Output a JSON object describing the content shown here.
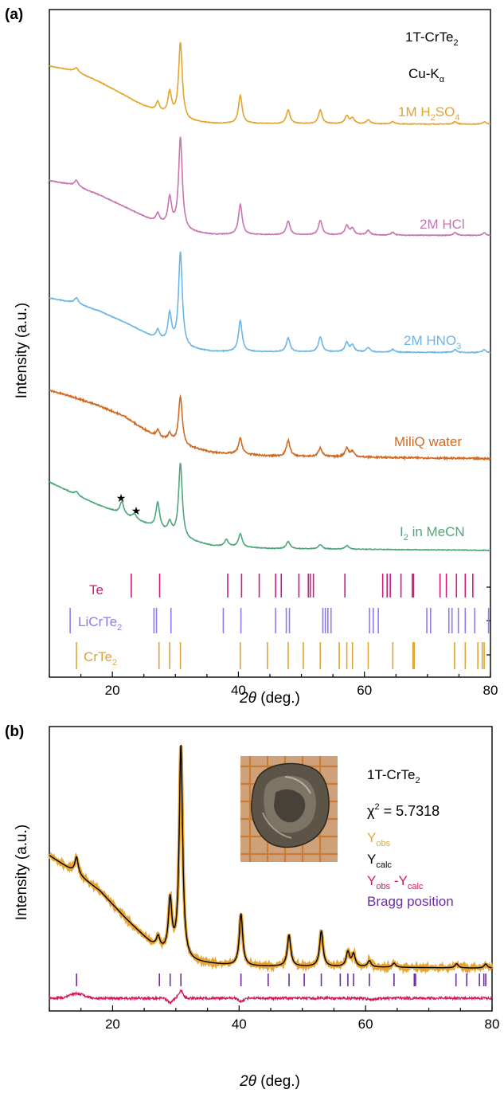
{
  "colors": {
    "h2so4": "#e3a42c",
    "hcl": "#c874b2",
    "hno3": "#6cb6e6",
    "water": "#cf6a22",
    "i2": "#4ea779",
    "te": "#d0197e",
    "licrte2": "#8a7cf0",
    "crte2": "#e0a432",
    "yobs": "#e6a434",
    "ycalc": "#000000",
    "diff": "#d0185c",
    "bragg": "#6a2fa0"
  },
  "chart_data": [
    {
      "type": "line",
      "panel_label": "(a)",
      "xlabel": "2θ (deg.)",
      "ylabel": "Intensity (a.u.)",
      "xlim": [
        10,
        80
      ],
      "xticks": [
        20,
        40,
        60,
        80
      ],
      "annotations": [
        "1T-CrTe2",
        "Cu-Kα"
      ],
      "series": [
        {
          "name": "1M H2SO4",
          "name_main": "1M H",
          "name_sub": "2",
          "name_tail": "SO",
          "name_sub2": "4",
          "background": [
            [
              10,
              0.75
            ],
            [
              14,
              0.69
            ],
            [
              18,
              0.55
            ],
            [
              22,
              0.38
            ],
            [
              24,
              0.29
            ],
            [
              27,
              0.18
            ],
            [
              32,
              0.06
            ],
            [
              36,
              0.03
            ],
            [
              80,
              0.02
            ]
          ],
          "peaks": [
            [
              14.3,
              0.05
            ],
            [
              27.2,
              0.12
            ],
            [
              29.1,
              0.28
            ],
            [
              30.8,
              0.95
            ],
            [
              40.3,
              0.35
            ],
            [
              47.9,
              0.17
            ],
            [
              53.0,
              0.17
            ],
            [
              57.2,
              0.1
            ],
            [
              58.1,
              0.07
            ],
            [
              60.6,
              0.05
            ],
            [
              64.5,
              0.03
            ],
            [
              74.4,
              0.03
            ],
            [
              79.0,
              0.03
            ]
          ]
        },
        {
          "name": "2M HCl",
          "background": [
            [
              10,
              0.62
            ],
            [
              14,
              0.57
            ],
            [
              18,
              0.46
            ],
            [
              22,
              0.33
            ],
            [
              24,
              0.26
            ],
            [
              27,
              0.16
            ],
            [
              32,
              0.06
            ],
            [
              36,
              0.03
            ],
            [
              80,
              0.02
            ]
          ],
          "peaks": [
            [
              14.3,
              0.06
            ],
            [
              27.2,
              0.1
            ],
            [
              29.1,
              0.3
            ],
            [
              30.8,
              1.0
            ],
            [
              40.3,
              0.33
            ],
            [
              47.9,
              0.15
            ],
            [
              53.0,
              0.16
            ],
            [
              57.2,
              0.1
            ],
            [
              58.1,
              0.07
            ],
            [
              60.6,
              0.05
            ],
            [
              64.5,
              0.03
            ],
            [
              74.4,
              0.03
            ],
            [
              79.0,
              0.03
            ]
          ]
        },
        {
          "name": "2M HNO3",
          "name_main": "2M HNO",
          "name_sub": "3",
          "background": [
            [
              10,
              0.6
            ],
            [
              14,
              0.55
            ],
            [
              18,
              0.46
            ],
            [
              22,
              0.34
            ],
            [
              24,
              0.27
            ],
            [
              27,
              0.16
            ],
            [
              32,
              0.06
            ],
            [
              36,
              0.03
            ],
            [
              80,
              0.02
            ]
          ],
          "peaks": [
            [
              14.3,
              0.06
            ],
            [
              27.2,
              0.1
            ],
            [
              29.1,
              0.3
            ],
            [
              30.8,
              1.0
            ],
            [
              40.3,
              0.33
            ],
            [
              47.9,
              0.15
            ],
            [
              53.0,
              0.16
            ],
            [
              57.2,
              0.1
            ],
            [
              58.1,
              0.07
            ],
            [
              60.6,
              0.05
            ],
            [
              64.5,
              0.03
            ],
            [
              74.4,
              0.03
            ],
            [
              79.0,
              0.03
            ]
          ]
        },
        {
          "name": "MiliQ water",
          "background": [
            [
              10,
              0.8
            ],
            [
              14,
              0.72
            ],
            [
              18,
              0.62
            ],
            [
              22,
              0.5
            ],
            [
              24,
              0.4
            ],
            [
              27,
              0.27
            ],
            [
              29,
              0.22
            ],
            [
              32,
              0.15
            ],
            [
              36,
              0.09
            ],
            [
              45,
              0.05
            ],
            [
              80,
              0.02
            ]
          ],
          "peaks": [
            [
              27.2,
              0.08
            ],
            [
              29.1,
              0.08
            ],
            [
              30.8,
              0.55
            ],
            [
              40.3,
              0.18
            ],
            [
              47.9,
              0.18
            ],
            [
              53.0,
              0.1
            ],
            [
              57.2,
              0.1
            ],
            [
              58.1,
              0.06
            ]
          ]
        },
        {
          "name": "I2 in MeCN",
          "name_main": "I",
          "name_sub": "2",
          "name_tail": " in MeCN",
          "background": [
            [
              10,
              0.8
            ],
            [
              14,
              0.66
            ],
            [
              18,
              0.53
            ],
            [
              22,
              0.42
            ],
            [
              24,
              0.36
            ],
            [
              27,
              0.27
            ],
            [
              30,
              0.18
            ],
            [
              32,
              0.13
            ],
            [
              36,
              0.07
            ],
            [
              45,
              0.04
            ],
            [
              80,
              0.02
            ]
          ],
          "peaks": [
            [
              14.3,
              0.04
            ],
            [
              21.5,
              0.14
            ],
            [
              23.5,
              0.06
            ],
            [
              27.2,
              0.3
            ],
            [
              29.1,
              0.12
            ],
            [
              30.8,
              0.85
            ],
            [
              38.1,
              0.08
            ],
            [
              40.3,
              0.15
            ],
            [
              47.9,
              0.08
            ],
            [
              53.0,
              0.05
            ],
            [
              57.2,
              0.04
            ]
          ]
        }
      ],
      "markers": [
        {
          "x": 21.5,
          "symbol": "★"
        },
        {
          "x": 23.5,
          "symbol": "★"
        }
      ],
      "reference_ticks": [
        {
          "name": "Te",
          "name_main": "Te",
          "positions": [
            23.0,
            27.5,
            38.3,
            40.5,
            43.3,
            45.9,
            46.8,
            49.6,
            51.1,
            51.4,
            51.9,
            56.9,
            62.9,
            63.6,
            64.1,
            65.8,
            67.6,
            67.8,
            72.0,
            73.0,
            74.6,
            76.0,
            77.2
          ]
        },
        {
          "name": "LiCrTe2",
          "name_main": "LiCrTe",
          "name_sub": "2",
          "positions": [
            13.3,
            26.6,
            27.0,
            29.3,
            37.6,
            40.4,
            45.9,
            47.6,
            48.1,
            53.4,
            53.8,
            54.2,
            54.7,
            60.8,
            61.4,
            62.2,
            69.9,
            70.5,
            73.4,
            73.9,
            74.9,
            76.0,
            77.5,
            79.7
          ]
        },
        {
          "name": "CrTe2",
          "name_main": "CrTe",
          "name_sub": "2",
          "positions": [
            14.3,
            27.4,
            29.1,
            30.8,
            40.3,
            44.6,
            47.9,
            50.3,
            53.0,
            56.0,
            57.2,
            58.1,
            60.6,
            64.5,
            67.7,
            67.9,
            74.3,
            76.0,
            78.0,
            78.7,
            79.0
          ]
        }
      ]
    },
    {
      "type": "line",
      "panel_label": "(b)",
      "xlabel": "2θ (deg.)",
      "ylabel": "Intensity (a.u.)",
      "xlim": [
        10,
        80
      ],
      "xticks": [
        20,
        40,
        60,
        80
      ],
      "annotations": [
        "1T-CrTe2",
        "χ2 = 5.7318"
      ],
      "legend": {
        "position": "top-right",
        "entries": [
          "Yobs",
          "Ycalc",
          "Yobs -Ycalc",
          "Bragg position"
        ]
      },
      "inset": "photo of sample",
      "series": [
        {
          "name": "Yobs",
          "background": [
            [
              10,
              0.55
            ],
            [
              14,
              0.47
            ],
            [
              18,
              0.38
            ],
            [
              22,
              0.25
            ],
            [
              26,
              0.13
            ],
            [
              28,
              0.09
            ],
            [
              32,
              0.04
            ],
            [
              40,
              0.02
            ],
            [
              80,
              0.01
            ]
          ],
          "peaks": [
            [
              14.3,
              0.08
            ],
            [
              27.2,
              0.05
            ],
            [
              29.1,
              0.25
            ],
            [
              30.8,
              1.02
            ],
            [
              40.3,
              0.25
            ],
            [
              47.9,
              0.15
            ],
            [
              53.0,
              0.17
            ],
            [
              57.2,
              0.07
            ],
            [
              58.1,
              0.06
            ],
            [
              60.6,
              0.03
            ],
            [
              64.5,
              0.02
            ],
            [
              74.4,
              0.02
            ],
            [
              79.0,
              0.02
            ]
          ]
        },
        {
          "name": "Ycalc"
        },
        {
          "name": "Yobs -Ycalc"
        }
      ],
      "bragg_positions": [
        14.3,
        27.4,
        29.1,
        30.8,
        40.3,
        44.6,
        47.9,
        50.3,
        53.0,
        56.0,
        57.2,
        58.1,
        60.6,
        64.5,
        67.7,
        67.9,
        74.3,
        76.0,
        78.0,
        78.7,
        79.0
      ]
    }
  ]
}
